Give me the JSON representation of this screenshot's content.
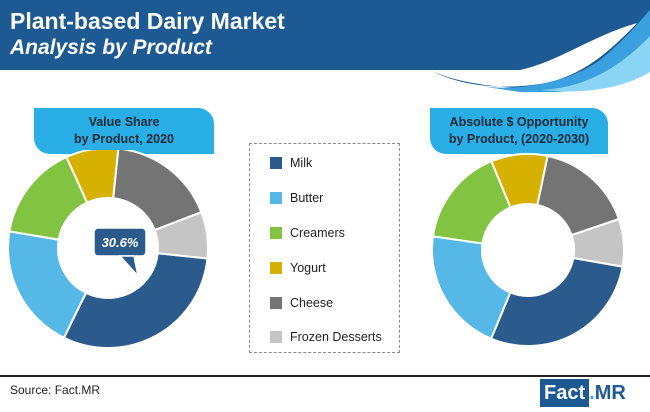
{
  "header": {
    "title": "Plant-based Dairy Market",
    "subtitle": "Analysis by Product"
  },
  "legend": {
    "items": [
      {
        "label": "Milk",
        "color": "#2a5b8c"
      },
      {
        "label": "Butter",
        "color": "#56b8e6"
      },
      {
        "label": "Creamers",
        "color": "#82c341"
      },
      {
        "label": "Yogurt",
        "color": "#d6b100"
      },
      {
        "label": "Cheese",
        "color": "#747474"
      },
      {
        "label": "Frozen Desserts",
        "color": "#c5c5c5"
      }
    ]
  },
  "chart_data": [
    {
      "type": "pie",
      "title_lines": [
        "Value Share",
        "by Product, 2020"
      ],
      "categories": [
        "Milk",
        "Butter",
        "Creamers",
        "Yogurt",
        "Cheese",
        "Frozen Desserts"
      ],
      "values": [
        30.6,
        20.4,
        15.5,
        8.5,
        17.5,
        7.5
      ],
      "callout": "30.6%",
      "callout_category": "Milk"
    },
    {
      "type": "pie",
      "title_lines": [
        "Absolute $ Opportunity",
        "by Product, (2020-2030)"
      ],
      "categories": [
        "Milk",
        "Butter",
        "Creamers",
        "Yogurt",
        "Cheese",
        "Frozen Desserts"
      ],
      "values": [
        28.5,
        21,
        16.5,
        9.5,
        16.5,
        8
      ]
    }
  ],
  "footer": {
    "source": "Source: Fact.MR",
    "logo_fact": "Fact",
    "logo_dot": ".",
    "logo_mr": "MR"
  }
}
